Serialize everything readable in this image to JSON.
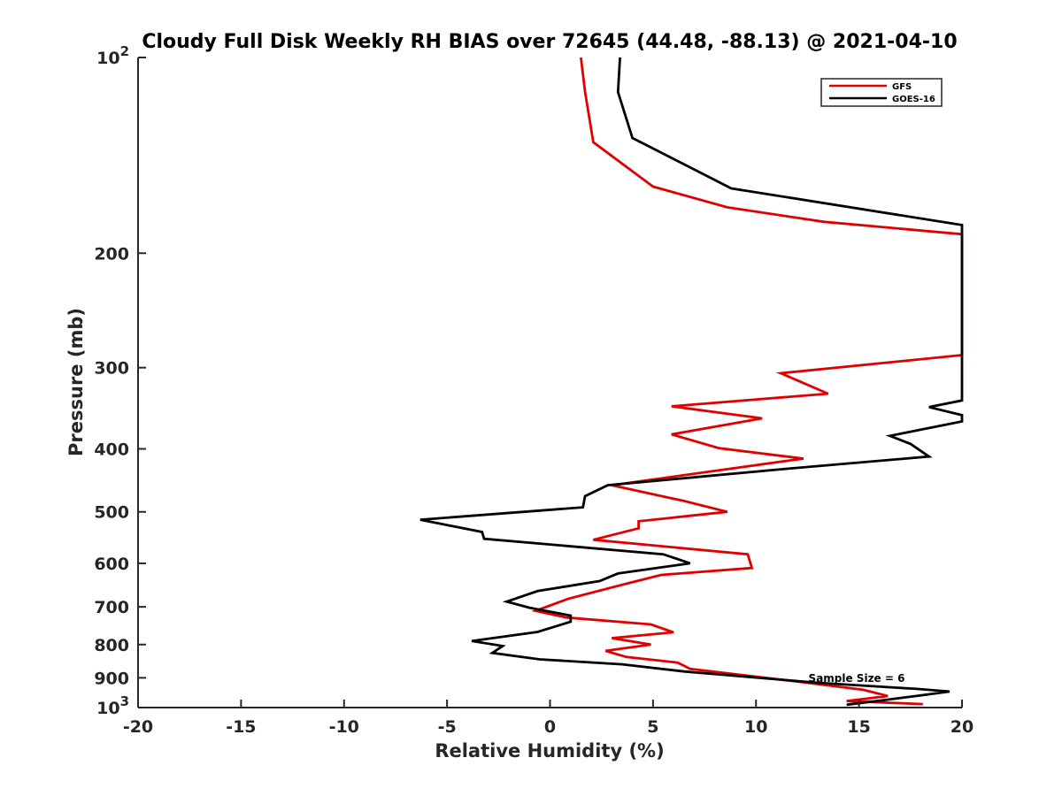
{
  "chart_data": {
    "type": "line",
    "title": "Cloudy Full Disk Weekly RH BIAS over 72645 (44.48, -88.13) @ 2021-04-10",
    "xlabel": "Relative Humidity (%)",
    "ylabel": "Pressure (mb)",
    "xlim": [
      -20,
      20
    ],
    "ylim": [
      100,
      1000
    ],
    "yscale": "log",
    "y_reversed": true,
    "grid": false,
    "legend_position": "top-right",
    "x_ticks": [
      {
        "value": -20,
        "label": "-20"
      },
      {
        "value": -15,
        "label": "-15"
      },
      {
        "value": -10,
        "label": "-10"
      },
      {
        "value": -5,
        "label": "-5"
      },
      {
        "value": 0,
        "label": "0"
      },
      {
        "value": 5,
        "label": "5"
      },
      {
        "value": 10,
        "label": "10"
      },
      {
        "value": 15,
        "label": "15"
      },
      {
        "value": 20,
        "label": "20"
      }
    ],
    "y_ticks": [
      {
        "value": 100,
        "base": "10",
        "exp": "2"
      },
      {
        "value": 200,
        "label": "200"
      },
      {
        "value": 300,
        "label": "300"
      },
      {
        "value": 400,
        "label": "400"
      },
      {
        "value": 500,
        "label": "500"
      },
      {
        "value": 600,
        "label": "600"
      },
      {
        "value": 700,
        "label": "700"
      },
      {
        "value": 800,
        "label": "800"
      },
      {
        "value": 900,
        "label": "900"
      },
      {
        "value": 1000,
        "base": "10",
        "exp": "3"
      }
    ],
    "annotation": "Sample Size = 6",
    "series": [
      {
        "name": "GFS",
        "color": "#e00000",
        "points": [
          [
            1.5,
            100
          ],
          [
            1.7,
            113
          ],
          [
            2.1,
            135
          ],
          [
            5.0,
            158
          ],
          [
            8.6,
            170
          ],
          [
            13.3,
            179
          ],
          [
            20,
            187
          ],
          [
            20,
            287
          ],
          [
            11.2,
            306
          ],
          [
            13.5,
            329
          ],
          [
            5.9,
            344
          ],
          [
            10.3,
            359
          ],
          [
            5.9,
            380
          ],
          [
            8.2,
            399
          ],
          [
            12.3,
            414
          ],
          [
            3.0,
            455
          ],
          [
            6.5,
            481
          ],
          [
            8.6,
            500
          ],
          [
            4.3,
            517
          ],
          [
            4.3,
            530
          ],
          [
            2.1,
            552
          ],
          [
            9.6,
            581
          ],
          [
            9.8,
            610
          ],
          [
            5.4,
            625
          ],
          [
            3.7,
            645
          ],
          [
            0.9,
            680
          ],
          [
            -0.7,
            710
          ],
          [
            0.8,
            727
          ],
          [
            4.9,
            745
          ],
          [
            6.0,
            766
          ],
          [
            3.0,
            782
          ],
          [
            4.9,
            800
          ],
          [
            2.7,
            818
          ],
          [
            3.7,
            836
          ],
          [
            6.2,
            853
          ],
          [
            6.8,
            872
          ],
          [
            12.0,
            912
          ],
          [
            15.2,
            939
          ],
          [
            16.4,
            960
          ],
          [
            14.4,
            977
          ],
          [
            18.1,
            988
          ]
        ]
      },
      {
        "name": "GOES-16",
        "color": "#000000",
        "points": [
          [
            3.4,
            100
          ],
          [
            3.3,
            113
          ],
          [
            4.0,
            133
          ],
          [
            8.8,
            159
          ],
          [
            20,
            181
          ],
          [
            20,
            337
          ],
          [
            18.4,
            345
          ],
          [
            20,
            355
          ],
          [
            20,
            363
          ],
          [
            16.5,
            382
          ],
          [
            17.5,
            393
          ],
          [
            18.4,
            411
          ],
          [
            11.2,
            430
          ],
          [
            2.8,
            455
          ],
          [
            1.7,
            473
          ],
          [
            1.6,
            492
          ],
          [
            -6.3,
            514
          ],
          [
            -3.3,
            537
          ],
          [
            -3.2,
            550
          ],
          [
            5.5,
            581
          ],
          [
            6.8,
            600
          ],
          [
            3.3,
            622
          ],
          [
            2.4,
            639
          ],
          [
            -0.6,
            662
          ],
          [
            -2.1,
            687
          ],
          [
            -1.0,
            702
          ],
          [
            1.0,
            722
          ],
          [
            1.0,
            738
          ],
          [
            -0.6,
            765
          ],
          [
            -3.8,
            790
          ],
          [
            -2.3,
            804
          ],
          [
            -2.8,
            824
          ],
          [
            -0.5,
            843
          ],
          [
            3.5,
            858
          ],
          [
            6.5,
            880
          ],
          [
            13.0,
            916
          ],
          [
            17.8,
            936
          ],
          [
            19.4,
            945
          ],
          [
            18.0,
            958
          ],
          [
            16.2,
            974
          ],
          [
            14.4,
            990
          ]
        ]
      }
    ]
  }
}
